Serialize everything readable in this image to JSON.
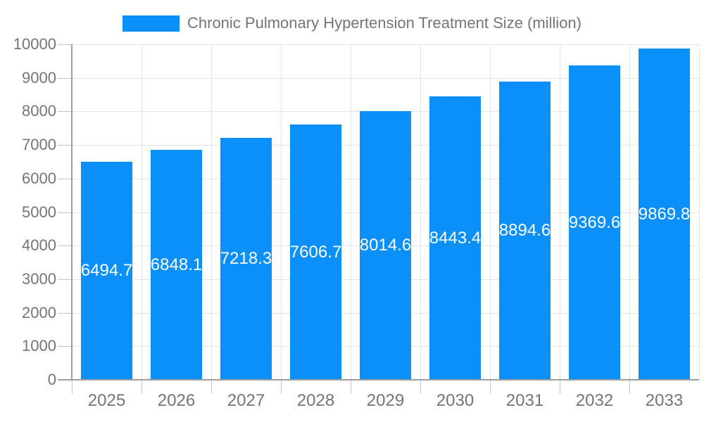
{
  "legend": {
    "position": "top-center"
  },
  "chart_data": {
    "type": "bar",
    "title": "Chronic Pulmonary Hypertension Treatment Size (million)",
    "categories": [
      "2025",
      "2026",
      "2027",
      "2028",
      "2029",
      "2030",
      "2031",
      "2032",
      "2033"
    ],
    "values": [
      6494.7,
      6848.1,
      7218.3,
      7606.7,
      8014.6,
      8443.4,
      8894.6,
      9369.6,
      9869.8
    ],
    "value_labels": [
      "6494.7",
      "6848.1",
      "7218.3",
      "7606.7",
      "8014.6",
      "8443.4",
      "8894.6",
      "9369.6",
      "9869.8"
    ],
    "xlabel": "",
    "ylabel": "",
    "ylim": [
      0,
      10000
    ],
    "ytick_step": 1000,
    "grid": true,
    "legend_position": "top-center",
    "colors": {
      "bar": "#0a90f8",
      "value_label": "#ffffff",
      "axis_text": "#757575",
      "gridline": "#e4e4e4",
      "axis_line": "#9e9e9e",
      "tick": "#c6c6c6",
      "background": "#ffffff"
    }
  }
}
